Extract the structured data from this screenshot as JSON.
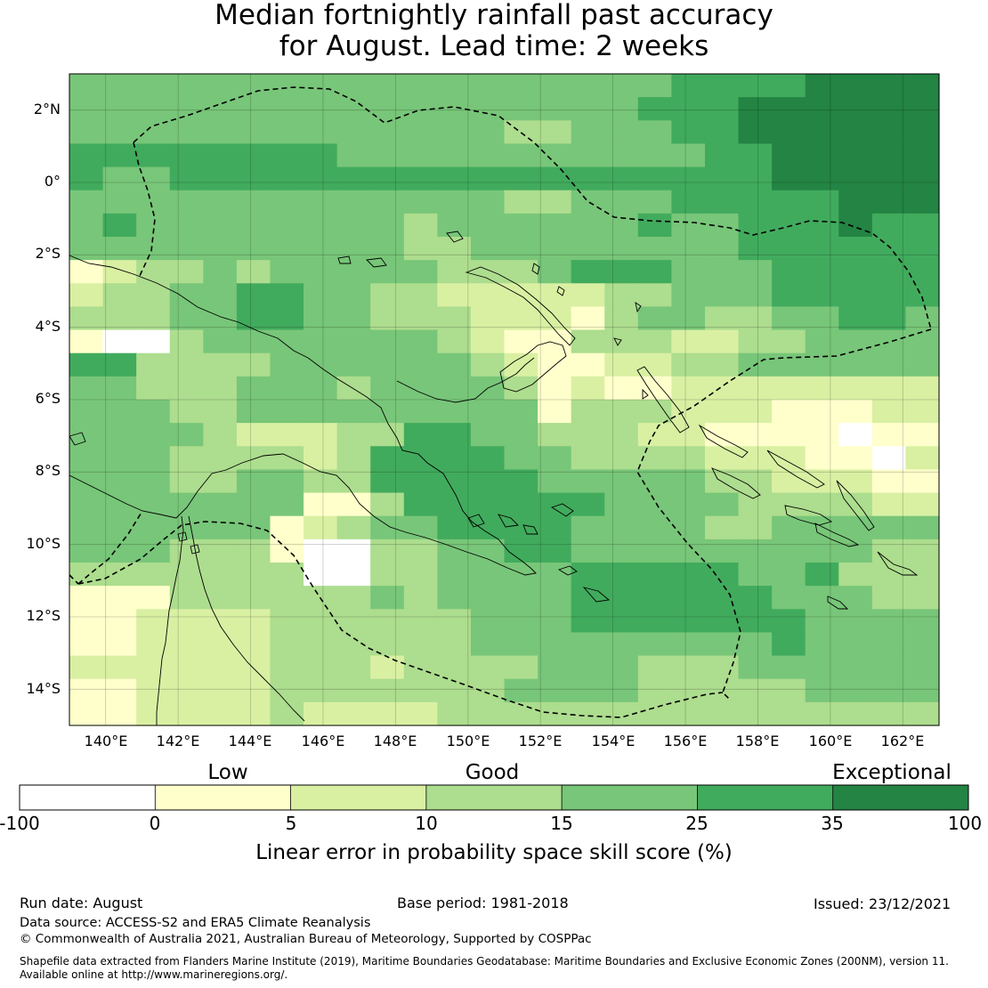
{
  "title": {
    "line1": "Median fortnightly rainfall past accuracy",
    "line2": "for August. Lead time: 2 weeks"
  },
  "map": {
    "lat_labels": [
      "2°N",
      "0°",
      "2°S",
      "4°S",
      "6°S",
      "8°S",
      "10°S",
      "12°S",
      "14°S"
    ],
    "lon_labels": [
      "140°E",
      "142°E",
      "144°E",
      "146°E",
      "148°E",
      "150°E",
      "152°E",
      "154°E",
      "156°E",
      "158°E",
      "160°E",
      "162°E"
    ],
    "lat_range": [
      -15,
      3
    ],
    "lon_range": [
      139,
      163
    ],
    "grid_cell_deg": 0.8,
    "boundary_style": "dashed"
  },
  "colorbar": {
    "category_labels": [
      "Low",
      "Good",
      "Exceptional"
    ],
    "tick_labels": [
      "-100",
      "0",
      "5",
      "10",
      "15",
      "25",
      "35",
      "100"
    ],
    "bins": [
      {
        "from": -100,
        "to": 0,
        "color": "#ffffff"
      },
      {
        "from": 0,
        "to": 5,
        "color": "#ffffcc"
      },
      {
        "from": 5,
        "to": 10,
        "color": "#d9f0a3"
      },
      {
        "from": 10,
        "to": 15,
        "color": "#addd8e"
      },
      {
        "from": 15,
        "to": 25,
        "color": "#78c679"
      },
      {
        "from": 25,
        "to": 35,
        "color": "#41ab5d"
      },
      {
        "from": 35,
        "to": 100,
        "color": "#238443"
      }
    ],
    "title": "Linear error in probability space skill score (%)"
  },
  "footer": {
    "run_date": "Run date: August",
    "base_period": "Base period: 1981-2018",
    "issued": "Issued: 23/12/2021",
    "data_source": "Data source: ACCESS-S2 and ERA5 Climate Reanalysis",
    "copyright": "© Commonwealth of Australia 2021, Australian Bureau of Meteorology, Supported by COSPPac",
    "shapefile_line1": "Shapefile data extracted from Flanders Marine Institute (2019), Maritime Boundaries Geodatabase: Maritime Boundaries and Exclusive Economic Zones (200NM), version 11.",
    "shapefile_line2": "Available online at http://www.marineregions.org/."
  }
}
